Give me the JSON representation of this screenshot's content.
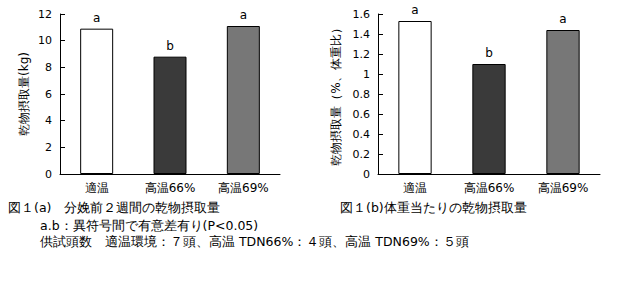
{
  "chart_data": [
    {
      "type": "bar",
      "title": "図１(a)　分娩前２週間の乾物摂取量",
      "y_label": "乾物摂取量(kg)",
      "categories": [
        "適温",
        "高温66%",
        "高温69%"
      ],
      "values": [
        10.9,
        8.8,
        11.1
      ],
      "annotations": [
        "a",
        "b",
        "a"
      ],
      "colors": [
        "#ffffff",
        "#3a3a3a",
        "#777777"
      ],
      "ylim": [
        0,
        12
      ],
      "yticks": [
        0,
        2,
        4,
        6,
        8,
        10,
        12
      ],
      "grid": false
    },
    {
      "type": "bar",
      "title": "図１(b)体重当たりの乾物摂取量",
      "y_label": "乾物摂取量（%、体重比）",
      "categories": [
        "適温",
        "高温66%",
        "高温69%"
      ],
      "values": [
        1.53,
        1.1,
        1.44
      ],
      "annotations": [
        "a",
        "b",
        "a"
      ],
      "colors": [
        "#ffffff",
        "#3a3a3a",
        "#777777"
      ],
      "ylim": [
        0,
        1.6
      ],
      "yticks": [
        0,
        0.2,
        0.4,
        0.6,
        0.8,
        1,
        1.2,
        1.4,
        1.6
      ],
      "grid": false
    }
  ],
  "notes": [
    "a.b：異符号間で有意差有り(P<0.05)",
    "供試頭数　適温環境：７頭、高温 TDN66%：４頭、高温 TDN69%：５頭"
  ]
}
